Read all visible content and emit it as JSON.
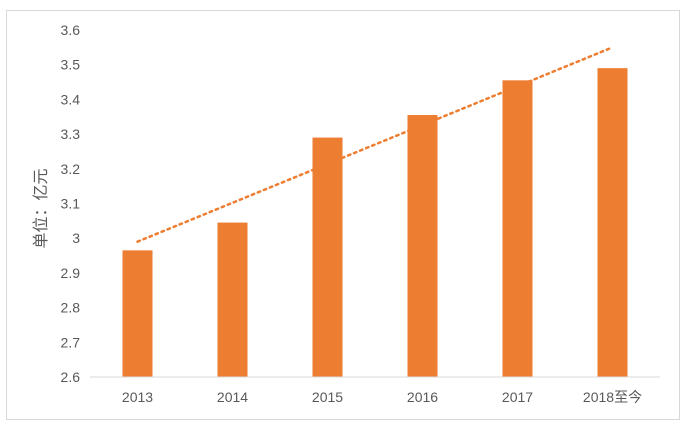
{
  "chart_data": {
    "type": "bar",
    "categories": [
      "2013",
      "2014",
      "2015",
      "2016",
      "2017",
      "2018至今"
    ],
    "values": [
      2.965,
      3.045,
      3.29,
      3.355,
      3.455,
      3.49
    ],
    "title": "",
    "xlabel": "",
    "ylabel": "单位：亿元",
    "ylim": [
      2.6,
      3.6
    ],
    "yticks": [
      "2.6",
      "2.7",
      "2.8",
      "2.9",
      "3",
      "3.1",
      "3.2",
      "3.3",
      "3.4",
      "3.5",
      "3.6"
    ],
    "trendline": {
      "type": "linear",
      "style": "dotted",
      "start": 2.99,
      "end": 3.55
    },
    "grid": false,
    "legend": "none",
    "colors": {
      "bar": "#ed7d31",
      "trendline": "#ed7d31",
      "axis": "#d9d9d9",
      "text": "#595959"
    }
  }
}
